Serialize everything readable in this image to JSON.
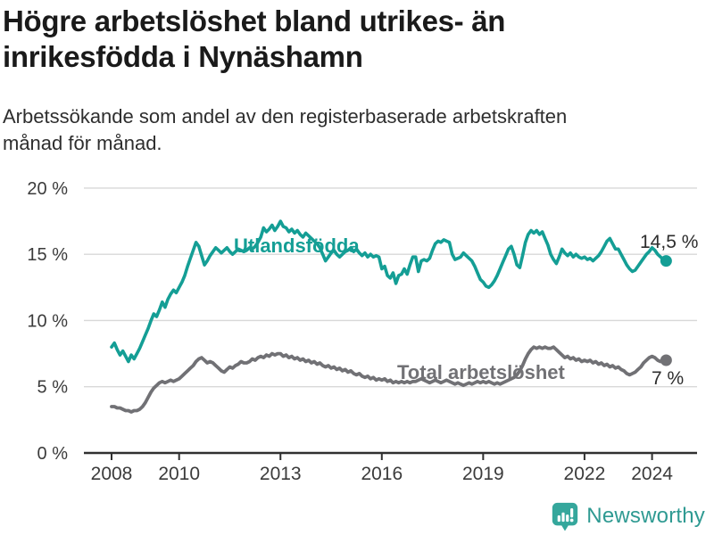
{
  "header": {
    "title": "Högre arbetslöshet bland utrikes- än inrikesfödda i Nynäshamn",
    "subtitle": "Arbetssökande som andel av den registerbaserade arbetskraften månad för månad."
  },
  "footer": {
    "brand": "Newsworthy"
  },
  "colors": {
    "accent_teal": "#149e95",
    "line_gray": "#717175",
    "axis_text": "#3b3b3b",
    "gridline": "#d8d8d8",
    "axis_line": "#303030",
    "annotation_text": "#2d2d2d",
    "brand_teal": "#2f9a92"
  },
  "chart_data": {
    "type": "line",
    "title": "Högre arbetslöshet bland utrikes- än inrikesfödda i Nynäshamn",
    "subtitle": "Arbetssökande som andel av den registerbaserade arbetskraften månad för månad.",
    "x_unit": "month",
    "x_start": "2008-01",
    "x_end": "2024-06",
    "x_tick_years": [
      2008,
      2010,
      2013,
      2016,
      2019,
      2022,
      2024
    ],
    "x_tick_labels": [
      "2008",
      "2010",
      "2013",
      "2016",
      "2019",
      "2022",
      "2024"
    ],
    "y_ticks": [
      0,
      5,
      10,
      15,
      20
    ],
    "y_tick_labels": [
      "0 %",
      "5 %",
      "10 %",
      "15 %",
      "20 %"
    ],
    "ylim": [
      0,
      20
    ],
    "grid": "horizontal",
    "legend_position": "inline-labels",
    "series": [
      {
        "name": "Utlandsfödda",
        "color": "#149e95",
        "end_label": "14,5 %",
        "end_value": 14.5,
        "values": [
          8.0,
          8.3,
          7.8,
          7.4,
          7.7,
          7.3,
          6.9,
          7.4,
          7.1,
          7.5,
          7.9,
          8.4,
          8.9,
          9.4,
          10.0,
          10.5,
          10.3,
          10.8,
          11.4,
          11.0,
          11.6,
          12.0,
          12.3,
          12.1,
          12.5,
          12.9,
          13.4,
          14.1,
          14.7,
          15.3,
          15.9,
          15.6,
          14.9,
          14.2,
          14.5,
          14.9,
          15.2,
          15.5,
          15.3,
          15.1,
          15.3,
          15.5,
          15.2,
          15.0,
          15.2,
          15.4,
          15.3,
          15.2,
          15.3,
          15.5,
          15.4,
          15.6,
          15.9,
          16.3,
          17.0,
          16.7,
          16.9,
          17.2,
          16.8,
          17.1,
          17.5,
          17.1,
          17.0,
          16.7,
          16.9,
          16.6,
          16.8,
          16.5,
          16.3,
          16.6,
          16.4,
          16.2,
          16.0,
          15.8,
          15.5,
          15.0,
          14.5,
          14.8,
          15.1,
          15.3,
          15.0,
          14.8,
          15.0,
          15.2,
          15.3,
          15.5,
          15.2,
          15.4,
          15.1,
          14.9,
          15.1,
          14.8,
          15.0,
          14.8,
          14.9,
          14.8,
          13.9,
          14.1,
          13.4,
          13.2,
          13.6,
          12.8,
          13.4,
          13.5,
          13.9,
          13.5,
          14.2,
          14.8,
          14.8,
          13.7,
          14.5,
          14.6,
          14.5,
          14.7,
          15.3,
          15.8,
          16.0,
          15.9,
          16.1,
          16.0,
          15.9,
          15.0,
          14.6,
          14.7,
          14.8,
          15.1,
          14.9,
          14.7,
          14.5,
          14.1,
          13.6,
          13.1,
          12.9,
          12.6,
          12.5,
          12.7,
          13.0,
          13.4,
          13.9,
          14.4,
          14.9,
          15.4,
          15.6,
          15.0,
          14.2,
          14.0,
          14.9,
          15.9,
          16.5,
          16.8,
          16.6,
          16.8,
          16.5,
          16.7,
          16.2,
          15.7,
          15.0,
          14.6,
          14.3,
          14.8,
          15.4,
          15.1,
          14.9,
          15.1,
          14.8,
          15.0,
          14.8,
          14.7,
          14.8,
          14.6,
          14.7,
          14.5,
          14.7,
          14.9,
          15.2,
          15.6,
          16.0,
          16.2,
          15.8,
          15.4,
          15.4,
          15.0,
          14.6,
          14.2,
          13.9,
          13.7,
          13.8,
          14.1,
          14.4,
          14.7,
          15.0,
          15.2,
          15.5,
          15.3,
          15.0,
          14.8,
          14.6,
          14.5
        ]
      },
      {
        "name": "Total arbetslöshet",
        "color": "#717175",
        "end_label": "7 %",
        "end_value": 7.0,
        "values": [
          3.5,
          3.5,
          3.4,
          3.4,
          3.3,
          3.2,
          3.2,
          3.1,
          3.2,
          3.2,
          3.3,
          3.5,
          3.8,
          4.2,
          4.6,
          4.9,
          5.1,
          5.3,
          5.4,
          5.3,
          5.4,
          5.5,
          5.4,
          5.5,
          5.6,
          5.8,
          6.0,
          6.2,
          6.4,
          6.6,
          6.9,
          7.1,
          7.2,
          7.0,
          6.8,
          6.9,
          6.8,
          6.6,
          6.4,
          6.2,
          6.1,
          6.3,
          6.5,
          6.4,
          6.6,
          6.7,
          6.9,
          6.8,
          6.8,
          6.9,
          7.1,
          7.0,
          7.2,
          7.3,
          7.2,
          7.4,
          7.3,
          7.5,
          7.4,
          7.5,
          7.5,
          7.3,
          7.4,
          7.2,
          7.3,
          7.1,
          7.2,
          7.0,
          7.1,
          6.9,
          7.0,
          6.8,
          6.9,
          6.7,
          6.8,
          6.6,
          6.5,
          6.6,
          6.4,
          6.5,
          6.3,
          6.4,
          6.2,
          6.3,
          6.1,
          6.2,
          6.0,
          5.9,
          6.0,
          5.8,
          5.7,
          5.8,
          5.6,
          5.7,
          5.5,
          5.6,
          5.5,
          5.6,
          5.4,
          5.5,
          5.3,
          5.4,
          5.3,
          5.4,
          5.3,
          5.4,
          5.3,
          5.4,
          5.4,
          5.5,
          5.6,
          5.5,
          5.4,
          5.3,
          5.4,
          5.5,
          5.4,
          5.3,
          5.4,
          5.5,
          5.4,
          5.3,
          5.2,
          5.3,
          5.2,
          5.1,
          5.2,
          5.3,
          5.2,
          5.3,
          5.4,
          5.3,
          5.4,
          5.3,
          5.4,
          5.3,
          5.2,
          5.3,
          5.2,
          5.3,
          5.4,
          5.5,
          5.6,
          5.7,
          5.9,
          6.2,
          6.6,
          7.1,
          7.5,
          7.8,
          8.0,
          7.9,
          8.0,
          7.9,
          8.0,
          7.9,
          7.9,
          8.0,
          7.8,
          7.6,
          7.4,
          7.2,
          7.3,
          7.1,
          7.2,
          7.0,
          7.1,
          6.9,
          7.0,
          6.9,
          7.0,
          6.8,
          6.9,
          6.7,
          6.8,
          6.6,
          6.7,
          6.5,
          6.6,
          6.4,
          6.5,
          6.3,
          6.2,
          6.0,
          5.9,
          6.0,
          6.1,
          6.3,
          6.5,
          6.8,
          7.0,
          7.2,
          7.3,
          7.2,
          7.0,
          6.9,
          7.0,
          7.0
        ]
      }
    ]
  }
}
